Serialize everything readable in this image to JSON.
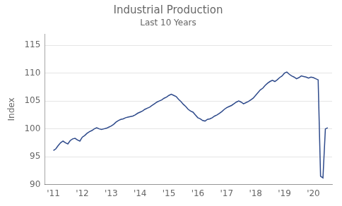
{
  "chart_data": {
    "type": "line",
    "title": "Industrial Production",
    "subtitle": "Last 10 Years",
    "ylabel": "Index",
    "color": "#2E4A8B",
    "grid": "y",
    "x": [
      2011.0,
      2011.083,
      2011.167,
      2011.25,
      2011.333,
      2011.417,
      2011.5,
      2011.583,
      2011.667,
      2011.75,
      2011.833,
      2011.917,
      2012.0,
      2012.083,
      2012.167,
      2012.25,
      2012.333,
      2012.417,
      2012.5,
      2012.583,
      2012.667,
      2012.75,
      2012.833,
      2012.917,
      2013.0,
      2013.083,
      2013.167,
      2013.25,
      2013.333,
      2013.417,
      2013.5,
      2013.583,
      2013.667,
      2013.75,
      2013.833,
      2013.917,
      2014.0,
      2014.083,
      2014.167,
      2014.25,
      2014.333,
      2014.417,
      2014.5,
      2014.583,
      2014.667,
      2014.75,
      2014.833,
      2014.917,
      2015.0,
      2015.083,
      2015.167,
      2015.25,
      2015.333,
      2015.417,
      2015.5,
      2015.583,
      2015.667,
      2015.75,
      2015.833,
      2015.917,
      2016.0,
      2016.083,
      2016.167,
      2016.25,
      2016.333,
      2016.417,
      2016.5,
      2016.583,
      2016.667,
      2016.75,
      2016.833,
      2016.917,
      2017.0,
      2017.083,
      2017.167,
      2017.25,
      2017.333,
      2017.417,
      2017.5,
      2017.583,
      2017.667,
      2017.75,
      2017.833,
      2017.917,
      2018.0,
      2018.083,
      2018.167,
      2018.25,
      2018.333,
      2018.417,
      2018.5,
      2018.583,
      2018.667,
      2018.75,
      2018.833,
      2018.917,
      2019.0,
      2019.083,
      2019.167,
      2019.25,
      2019.333,
      2019.417,
      2019.5,
      2019.583,
      2019.667,
      2019.75,
      2019.833,
      2019.917,
      2020.0,
      2020.083,
      2020.167,
      2020.25,
      2020.333,
      2020.417,
      2020.5
    ],
    "values": [
      96.1,
      96.4,
      97.0,
      97.5,
      97.8,
      97.5,
      97.3,
      97.9,
      98.2,
      98.3,
      98.0,
      97.8,
      98.5,
      98.8,
      99.2,
      99.5,
      99.7,
      100.0,
      100.2,
      100.0,
      99.9,
      100.0,
      100.1,
      100.3,
      100.5,
      100.8,
      101.2,
      101.5,
      101.7,
      101.8,
      102.0,
      102.1,
      102.2,
      102.3,
      102.5,
      102.8,
      103.0,
      103.2,
      103.5,
      103.7,
      103.9,
      104.2,
      104.5,
      104.8,
      105.0,
      105.2,
      105.5,
      105.7,
      106.0,
      106.2,
      106.0,
      105.8,
      105.3,
      104.9,
      104.4,
      104.0,
      103.5,
      103.2,
      103.0,
      102.5,
      102.0,
      101.8,
      101.5,
      101.4,
      101.7,
      101.8,
      102.0,
      102.3,
      102.5,
      102.8,
      103.1,
      103.5,
      103.8,
      104.0,
      104.2,
      104.5,
      104.8,
      105.0,
      104.8,
      104.5,
      104.7,
      104.9,
      105.2,
      105.5,
      106.0,
      106.5,
      107.0,
      107.3,
      107.8,
      108.2,
      108.5,
      108.7,
      108.5,
      108.8,
      109.2,
      109.5,
      110.0,
      110.2,
      109.8,
      109.5,
      109.3,
      109.0,
      109.2,
      109.5,
      109.4,
      109.3,
      109.1,
      109.3,
      109.2,
      109.0,
      108.8,
      91.5,
      91.2,
      100.0,
      100.2
    ],
    "xlim": [
      2010.7,
      2020.65
    ],
    "xticks": [
      {
        "value": 2011.0,
        "label": "'11"
      },
      {
        "value": 2012.0,
        "label": "'12"
      },
      {
        "value": 2013.0,
        "label": "'13"
      },
      {
        "value": 2014.0,
        "label": "'14"
      },
      {
        "value": 2015.0,
        "label": "'15"
      },
      {
        "value": 2016.0,
        "label": "'16"
      },
      {
        "value": 2017.0,
        "label": "'17"
      },
      {
        "value": 2018.0,
        "label": "'18"
      },
      {
        "value": 2019.0,
        "label": "'19"
      },
      {
        "value": 2020.0,
        "label": "'20"
      }
    ],
    "ylim": [
      90,
      117
    ],
    "yticks": [
      90,
      95,
      100,
      105,
      110,
      115
    ]
  }
}
